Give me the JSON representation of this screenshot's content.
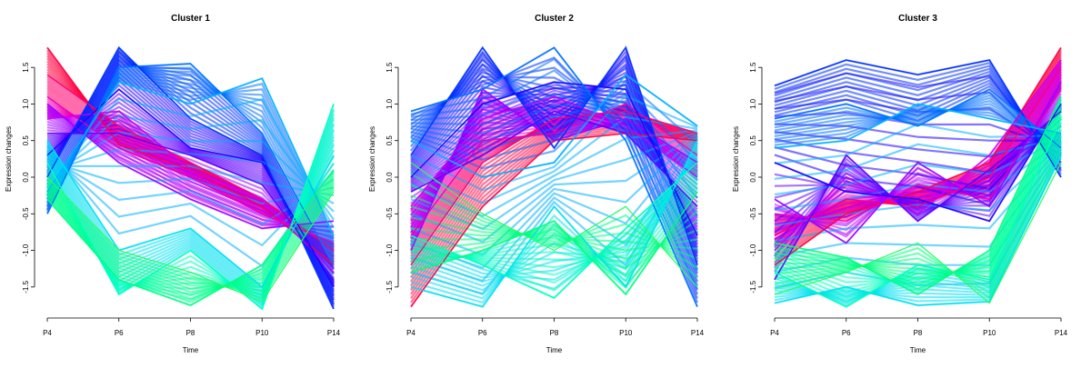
{
  "chart_data": [
    {
      "type": "line",
      "title": "Cluster 1",
      "xlabel": "Time",
      "ylabel": "Expression changes",
      "categories": [
        "P4",
        "P6",
        "P8",
        "P10",
        "P14"
      ],
      "ylim": [
        -1.8,
        1.8
      ],
      "yticks": [
        "-1.5",
        "-1.0",
        "-0.5",
        "0.0",
        "0.5",
        "1.0",
        "1.5"
      ],
      "series": [
        {
          "values": [
            1.77,
            0.45,
            0.1,
            -0.4,
            -1.2
          ]
        },
        {
          "values": [
            1.4,
            0.7,
            0.2,
            -0.3,
            -1.0
          ]
        },
        {
          "values": [
            1.1,
            0.4,
            0.0,
            -0.5,
            -0.9
          ]
        },
        {
          "values": [
            0.8,
            0.9,
            0.1,
            -0.3,
            -1.3
          ]
        },
        {
          "values": [
            1.0,
            0.2,
            -0.3,
            -0.7,
            -0.6
          ]
        },
        {
          "values": [
            0.6,
            0.6,
            0.3,
            -0.1,
            -1.4
          ]
        },
        {
          "values": [
            0.3,
            1.2,
            0.4,
            0.2,
            -1.5
          ]
        },
        {
          "values": [
            0.0,
            1.77,
            0.8,
            0.3,
            -1.8
          ]
        },
        {
          "values": [
            -0.5,
            1.5,
            1.55,
            0.6,
            -1.2
          ]
        },
        {
          "values": [
            -0.2,
            1.3,
            1.0,
            1.35,
            -0.8
          ]
        },
        {
          "values": [
            0.5,
            -1.0,
            -0.7,
            -1.5,
            0.3
          ]
        },
        {
          "values": [
            0.2,
            -1.6,
            -1.0,
            -1.8,
            1.0
          ]
        },
        {
          "values": [
            -0.3,
            -1.4,
            -1.75,
            -1.2,
            0.1
          ]
        },
        {
          "values": [
            0.0,
            -1.0,
            -1.3,
            -1.7,
            -0.2
          ]
        }
      ]
    },
    {
      "type": "line",
      "title": "Cluster 2",
      "xlabel": "Time",
      "ylabel": "Expression changes",
      "categories": [
        "P4",
        "P6",
        "P8",
        "P10",
        "P14"
      ],
      "ylim": [
        -1.8,
        1.8
      ],
      "yticks": [
        "-1.5",
        "-1.0",
        "-0.5",
        "0.0",
        "0.5",
        "1.0",
        "1.5"
      ],
      "series": [
        {
          "values": [
            -1.77,
            -0.4,
            0.5,
            0.6,
            0.5
          ]
        },
        {
          "values": [
            -1.2,
            0.2,
            0.8,
            0.9,
            0.6
          ]
        },
        {
          "values": [
            -0.8,
            0.5,
            0.6,
            1.0,
            0.3
          ]
        },
        {
          "values": [
            -0.4,
            0.8,
            1.1,
            0.7,
            0.0
          ]
        },
        {
          "values": [
            -1.0,
            1.2,
            0.5,
            0.8,
            0.2
          ]
        },
        {
          "values": [
            -0.2,
            0.3,
            0.9,
            0.6,
            -0.4
          ]
        },
        {
          "values": [
            0.0,
            1.0,
            1.3,
            1.2,
            -0.8
          ]
        },
        {
          "values": [
            0.3,
            1.77,
            0.4,
            1.77,
            -1.2
          ]
        },
        {
          "values": [
            0.9,
            1.2,
            1.77,
            0.5,
            -1.77
          ]
        },
        {
          "values": [
            0.5,
            0.0,
            0.2,
            1.4,
            0.7
          ]
        },
        {
          "values": [
            -1.5,
            -1.77,
            -0.4,
            -1.5,
            0.5
          ]
        },
        {
          "values": [
            -0.8,
            -1.2,
            -1.65,
            -0.7,
            0.2
          ]
        },
        {
          "values": [
            -1.3,
            -1.0,
            -0.6,
            -1.6,
            -0.2
          ]
        },
        {
          "values": [
            0.2,
            -0.5,
            -1.0,
            -0.4,
            -1.5
          ]
        }
      ]
    },
    {
      "type": "line",
      "title": "Cluster 3",
      "xlabel": "Time",
      "ylabel": "Expression changes",
      "categories": [
        "P4",
        "P6",
        "P8",
        "P10",
        "P14"
      ],
      "ylim": [
        -1.8,
        1.8
      ],
      "yticks": [
        "-1.5",
        "-1.0",
        "-0.5",
        "0.0",
        "0.5",
        "1.0",
        "1.5"
      ],
      "series": [
        {
          "values": [
            -1.2,
            -0.5,
            -0.2,
            0.2,
            1.77
          ]
        },
        {
          "values": [
            -0.8,
            -0.3,
            -0.4,
            0.0,
            1.5
          ]
        },
        {
          "values": [
            -0.5,
            -0.6,
            -0.1,
            -0.3,
            1.2
          ]
        },
        {
          "values": [
            -1.0,
            0.0,
            -0.5,
            0.3,
            1.6
          ]
        },
        {
          "values": [
            -0.3,
            -0.9,
            0.2,
            -0.4,
            1.3
          ]
        },
        {
          "values": [
            -1.4,
            0.3,
            -0.6,
            0.1,
            0.9
          ]
        },
        {
          "values": [
            0.2,
            -0.2,
            -0.3,
            -0.6,
            1.0
          ]
        },
        {
          "values": [
            1.25,
            1.6,
            1.4,
            1.6,
            0.0
          ]
        },
        {
          "values": [
            0.8,
            1.0,
            0.7,
            1.2,
            0.4
          ]
        },
        {
          "values": [
            0.4,
            0.5,
            1.0,
            0.8,
            0.6
          ]
        },
        {
          "values": [
            -1.72,
            -1.5,
            -1.75,
            -1.7,
            0.3
          ]
        },
        {
          "values": [
            -1.3,
            -1.77,
            -1.2,
            -1.4,
            0.8
          ]
        },
        {
          "values": [
            -0.9,
            -1.1,
            -1.6,
            -1.0,
            1.1
          ]
        },
        {
          "values": [
            -1.6,
            -1.3,
            -0.9,
            -1.72,
            0.2
          ]
        }
      ]
    }
  ]
}
